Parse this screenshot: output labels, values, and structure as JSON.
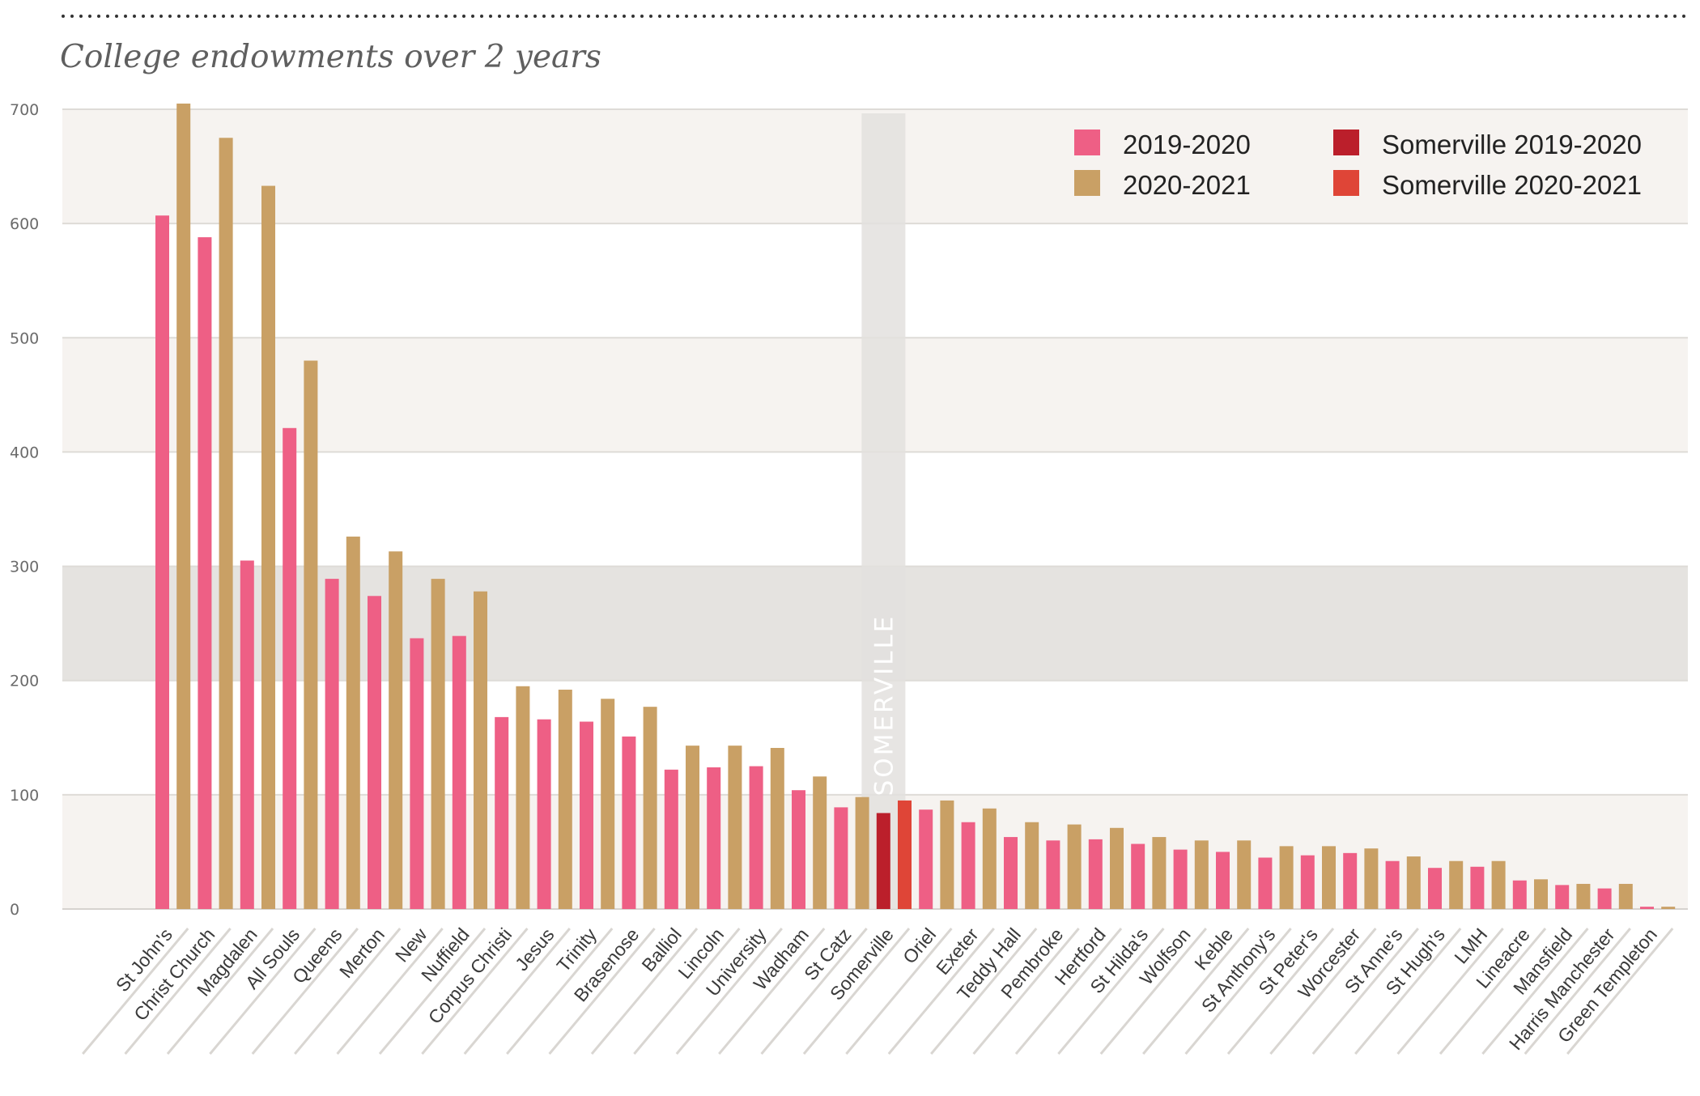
{
  "chart_data": {
    "type": "bar",
    "title": "College endowments over 2 years",
    "ylim": [
      0,
      700
    ],
    "yticks": [
      0,
      100,
      200,
      300,
      400,
      500,
      600,
      700
    ],
    "highlight_label": "SOMERVILLE",
    "highlight_category": "Somerville",
    "colors": {
      "series_2019": "#ee5f85",
      "series_2020": "#c9a065",
      "somerville_2019": "#bb1f2b",
      "somerville_2020": "#df4537",
      "band_light": "#f6f3f0",
      "band_dark": "#e5e3e0",
      "highlight_column": "#e3e1de"
    },
    "legend": [
      {
        "label": "2019-2020",
        "color": "#ee5f85"
      },
      {
        "label": "2020-2021",
        "color": "#c9a065"
      },
      {
        "label": "Somerville 2019-2020",
        "color": "#bb1f2b"
      },
      {
        "label": "Somerville 2020-2021",
        "color": "#df4537"
      }
    ],
    "x": [
      "St John's",
      "Christ Church",
      "Magdalen",
      "All Souls",
      "Queens",
      "Merton",
      "New",
      "Nuffield",
      "Corpus Christi",
      "Jesus",
      "Trinity",
      "Brasenose",
      "Balliol",
      "Lincoln",
      "University",
      "Wadham",
      "St Catz",
      "Somerville",
      "Oriel",
      "Exeter",
      "Teddy Hall",
      "Pembroke",
      "Hertford",
      "St Hilda's",
      "Wolfson",
      "Keble",
      "St Anthony's",
      "St Peter's",
      "Worcester",
      "St Anne's",
      "St Hugh's",
      "LMH",
      "Lineacre",
      "Mansfield",
      "Harris Manchester",
      "Green Templeton"
    ],
    "sequence": [
      {
        "series": "2019-2020",
        "value": 607
      },
      {
        "series": "2020-2021",
        "value": 705
      },
      {
        "series": "2019-2020",
        "value": 588
      },
      {
        "series": "2020-2021",
        "value": 675
      },
      {
        "series": "2019-2020",
        "value": 305
      },
      {
        "series": "2020-2021",
        "value": 633
      },
      {
        "series": "2019-2020",
        "value": 421
      },
      {
        "series": "2020-2021",
        "value": 480
      },
      {
        "series": "2019-2020",
        "value": 289
      },
      {
        "series": "2020-2021",
        "value": 326
      },
      {
        "series": "2019-2020",
        "value": 274
      },
      {
        "series": "2020-2021",
        "value": 313
      },
      {
        "series": "2019-2020",
        "value": 237
      },
      {
        "series": "2020-2021",
        "value": 289
      },
      {
        "series": "2019-2020",
        "value": 239
      },
      {
        "series": "2020-2021",
        "value": 278
      },
      {
        "series": "2019-2020",
        "value": 168
      },
      {
        "series": "2020-2021",
        "value": 195
      },
      {
        "series": "2019-2020",
        "value": 166
      },
      {
        "series": "2020-2021",
        "value": 192
      },
      {
        "series": "2019-2020",
        "value": 164
      },
      {
        "series": "2020-2021",
        "value": 184
      },
      {
        "series": "2019-2020",
        "value": 151
      },
      {
        "series": "2020-2021",
        "value": 177
      },
      {
        "series": "2019-2020",
        "value": 122
      },
      {
        "series": "2020-2021",
        "value": 143
      },
      {
        "series": "2019-2020",
        "value": 124
      },
      {
        "series": "2020-2021",
        "value": 143
      },
      {
        "series": "2019-2020",
        "value": 125
      },
      {
        "series": "2020-2021",
        "value": 141
      },
      {
        "series": "2019-2020",
        "value": 104
      },
      {
        "series": "2020-2021",
        "value": 116
      },
      {
        "series": "2019-2020",
        "value": 89
      },
      {
        "series": "2020-2021",
        "value": 98
      },
      {
        "series": "Somerville 2019-2020",
        "value": 84
      },
      {
        "series": "Somerville 2020-2021",
        "value": 95
      },
      {
        "series": "2019-2020",
        "value": 87
      },
      {
        "series": "2020-2021",
        "value": 95
      },
      {
        "series": "2019-2020",
        "value": 76
      },
      {
        "series": "2020-2021",
        "value": 88
      },
      {
        "series": "2019-2020",
        "value": 63
      },
      {
        "series": "2020-2021",
        "value": 76
      },
      {
        "series": "2019-2020",
        "value": 60
      },
      {
        "series": "2020-2021",
        "value": 74
      },
      {
        "series": "2019-2020",
        "value": 61
      },
      {
        "series": "2020-2021",
        "value": 71
      },
      {
        "series": "2019-2020",
        "value": 57
      },
      {
        "series": "2020-2021",
        "value": 63
      },
      {
        "series": "2019-2020",
        "value": 52
      },
      {
        "series": "2020-2021",
        "value": 60
      },
      {
        "series": "2019-2020",
        "value": 50
      },
      {
        "series": "2020-2021",
        "value": 60
      },
      {
        "series": "2019-2020",
        "value": 45
      },
      {
        "series": "2020-2021",
        "value": 55
      },
      {
        "series": "2019-2020",
        "value": 47
      },
      {
        "series": "2020-2021",
        "value": 55
      },
      {
        "series": "2019-2020",
        "value": 49
      },
      {
        "series": "2020-2021",
        "value": 53
      },
      {
        "series": "2019-2020",
        "value": 42
      },
      {
        "series": "2020-2021",
        "value": 46
      },
      {
        "series": "2019-2020",
        "value": 36
      },
      {
        "series": "2020-2021",
        "value": 42
      },
      {
        "series": "2019-2020",
        "value": 37
      },
      {
        "series": "2020-2021",
        "value": 42
      },
      {
        "series": "2019-2020",
        "value": 25
      },
      {
        "series": "2020-2021",
        "value": 26
      },
      {
        "series": "2019-2020",
        "value": 21
      },
      {
        "series": "2020-2021",
        "value": 22
      },
      {
        "series": "2019-2020",
        "value": 18
      },
      {
        "series": "2020-2021",
        "value": 22
      },
      {
        "series": "2019-2020",
        "value": 2
      },
      {
        "series": "2020-2021",
        "value": 2
      }
    ]
  }
}
